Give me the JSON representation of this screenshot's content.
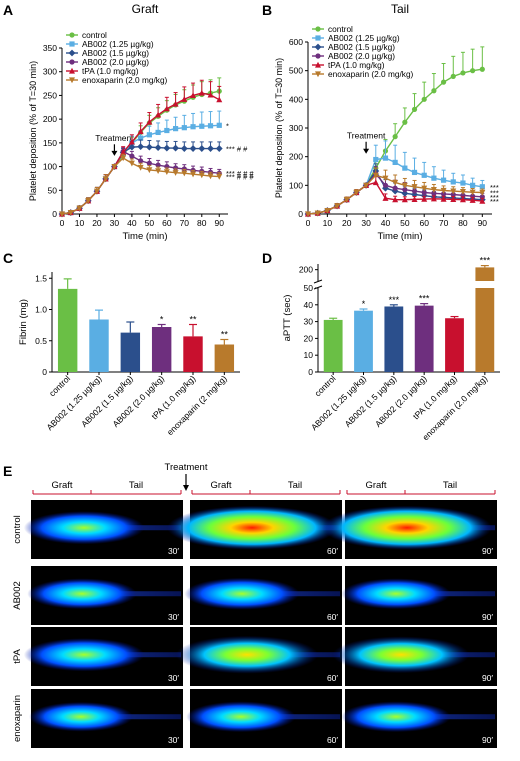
{
  "colors": {
    "control": "#6abf45",
    "ab125": "#5aaee3",
    "ab15": "#2b4f8c",
    "ab20": "#6e2f7e",
    "tpa": "#c8102e",
    "enox": "#b87a2c"
  },
  "panels": {
    "A": {
      "letter": "A"
    },
    "B": {
      "letter": "B"
    },
    "C": {
      "letter": "C"
    },
    "D": {
      "letter": "D"
    },
    "E": {
      "letter": "E"
    }
  },
  "chart_data": [
    {
      "id": "A",
      "type": "line",
      "title": "Graft",
      "xlabel": "Time (min)",
      "ylabel": "Platelet deposition (% of T=30 min)",
      "xlim": [
        0,
        95
      ],
      "ylim": [
        0,
        350
      ],
      "xticks": [
        "0",
        "10",
        "20",
        "30",
        "40",
        "50",
        "60",
        "70",
        "80",
        "90"
      ],
      "yticks": [
        "0",
        "50",
        "100",
        "150",
        "200",
        "250",
        "300",
        "350"
      ],
      "legend": "top-left",
      "annotation": "Treatment",
      "annotation_x": 30,
      "x": [
        0,
        5,
        10,
        15,
        20,
        25,
        30,
        35,
        40,
        45,
        50,
        55,
        60,
        65,
        70,
        75,
        80,
        85,
        90
      ],
      "series": [
        {
          "name": "control",
          "key": "control",
          "marker": "circle",
          "values": [
            0,
            3,
            12,
            28,
            48,
            74,
            100,
            124,
            150,
            172,
            192,
            206,
            219,
            230,
            238,
            246,
            252,
            255,
            259
          ],
          "err": [
            0,
            4,
            5,
            6,
            8,
            9,
            0,
            10,
            12,
            14,
            16,
            18,
            20,
            22,
            24,
            26,
            27,
            28,
            28
          ],
          "end_label": ""
        },
        {
          "name": "AB002 (1.25 µg/kg)",
          "key": "ab125",
          "marker": "square",
          "values": [
            0,
            3,
            12,
            28,
            48,
            74,
            100,
            128,
            150,
            160,
            167,
            172,
            176,
            180,
            182,
            184,
            185,
            186,
            187
          ],
          "err": [
            0,
            4,
            5,
            6,
            8,
            9,
            0,
            10,
            14,
            16,
            18,
            20,
            22,
            24,
            26,
            28,
            30,
            30,
            30
          ],
          "end_label": "*"
        },
        {
          "name": "AB002 (1.5 µg/kg)",
          "key": "ab15",
          "marker": "diamond",
          "values": [
            0,
            3,
            12,
            28,
            48,
            74,
            100,
            130,
            141,
            142,
            141,
            140,
            139,
            139,
            138,
            138,
            138,
            138,
            138
          ],
          "err": [
            0,
            4,
            5,
            6,
            8,
            9,
            0,
            8,
            12,
            14,
            14,
            14,
            14,
            14,
            14,
            14,
            14,
            14,
            14
          ],
          "end_label": "*** # #"
        },
        {
          "name": "AB002 (2.0 µg/kg)",
          "key": "ab20",
          "marker": "circle",
          "values": [
            0,
            3,
            12,
            28,
            48,
            74,
            100,
            132,
            122,
            112,
            107,
            103,
            100,
            97,
            95,
            92,
            90,
            88,
            86
          ],
          "err": [
            0,
            4,
            5,
            6,
            8,
            9,
            0,
            8,
            10,
            10,
            10,
            10,
            10,
            9,
            9,
            9,
            9,
            8,
            8
          ],
          "end_label": "*** # # #"
        },
        {
          "name": "tPA (1.0 mg/kg)",
          "key": "tpa",
          "marker": "triangle",
          "values": [
            0,
            3,
            12,
            28,
            48,
            74,
            100,
            130,
            152,
            174,
            194,
            209,
            222,
            232,
            242,
            250,
            255,
            251,
            241
          ],
          "err": [
            0,
            4,
            5,
            6,
            8,
            9,
            0,
            12,
            15,
            18,
            20,
            22,
            24,
            24,
            26,
            26,
            27,
            28,
            28
          ],
          "end_label": ""
        },
        {
          "name": "enoxaparin (2.0 mg/kg)",
          "key": "enox",
          "marker": "triangle-down",
          "values": [
            0,
            3,
            12,
            28,
            48,
            74,
            100,
            118,
            107,
            98,
            93,
            91,
            89,
            87,
            86,
            84,
            82,
            80,
            79
          ],
          "err": [
            0,
            4,
            5,
            6,
            8,
            9,
            0,
            8,
            9,
            9,
            9,
            8,
            8,
            8,
            8,
            8,
            8,
            8,
            8
          ],
          "end_label": "*** # # #"
        }
      ]
    },
    {
      "id": "B",
      "type": "line",
      "title": "Tail",
      "xlabel": "Time (min)",
      "ylabel": "Platelet deposition (% of T=30 min)",
      "xlim": [
        0,
        95
      ],
      "ylim": [
        0,
        600
      ],
      "xticks": [
        "0",
        "10",
        "20",
        "30",
        "40",
        "50",
        "60",
        "70",
        "80",
        "90"
      ],
      "yticks": [
        "0",
        "100",
        "200",
        "300",
        "400",
        "500",
        "600"
      ],
      "legend": "top-left",
      "annotation": "Treatment",
      "annotation_x": 30,
      "x": [
        0,
        5,
        10,
        15,
        20,
        25,
        30,
        35,
        40,
        45,
        50,
        55,
        60,
        65,
        70,
        75,
        80,
        85,
        90
      ],
      "series": [
        {
          "name": "control",
          "key": "control",
          "marker": "circle",
          "values": [
            0,
            3,
            12,
            28,
            50,
            75,
            100,
            160,
            220,
            270,
            320,
            365,
            400,
            430,
            460,
            480,
            492,
            500,
            505
          ],
          "err": [
            0,
            5,
            6,
            8,
            9,
            10,
            0,
            30,
            40,
            45,
            50,
            55,
            60,
            60,
            65,
            70,
            72,
            75,
            78
          ],
          "end_label": ""
        },
        {
          "name": "AB002 (1.25 µg/kg)",
          "key": "ab125",
          "marker": "square",
          "values": [
            0,
            3,
            12,
            28,
            50,
            75,
            100,
            190,
            195,
            180,
            160,
            145,
            135,
            125,
            118,
            112,
            108,
            100,
            95
          ],
          "err": [
            0,
            5,
            6,
            8,
            9,
            10,
            0,
            50,
            60,
            60,
            55,
            50,
            45,
            40,
            35,
            30,
            28,
            25,
            22
          ],
          "end_label": "***"
        },
        {
          "name": "AB002 (1.5 µg/kg)",
          "key": "ab15",
          "marker": "diamond",
          "values": [
            0,
            3,
            12,
            28,
            50,
            75,
            100,
            150,
            90,
            80,
            72,
            68,
            64,
            60,
            58,
            56,
            54,
            52,
            50
          ],
          "err": [
            0,
            5,
            6,
            8,
            9,
            10,
            0,
            25,
            30,
            28,
            25,
            22,
            20,
            18,
            16,
            15,
            14,
            13,
            12
          ],
          "end_label": ""
        },
        {
          "name": "AB002 (2.0 µg/kg)",
          "key": "ab20",
          "marker": "circle",
          "values": [
            0,
            3,
            12,
            28,
            50,
            75,
            100,
            140,
            100,
            90,
            85,
            80,
            75,
            72,
            70,
            68,
            65,
            62,
            60
          ],
          "err": [
            0,
            5,
            6,
            8,
            9,
            10,
            0,
            25,
            30,
            28,
            25,
            22,
            20,
            18,
            16,
            15,
            14,
            13,
            12
          ],
          "end_label": "***"
        },
        {
          "name": "tPA (1.0 mg/kg)",
          "key": "tpa",
          "marker": "triangle",
          "values": [
            0,
            3,
            12,
            28,
            50,
            75,
            100,
            110,
            55,
            50,
            50,
            51,
            52,
            53,
            52,
            51,
            50,
            48,
            45
          ],
          "err": [
            0,
            5,
            6,
            8,
            9,
            10,
            0,
            20,
            15,
            12,
            10,
            10,
            10,
            10,
            10,
            10,
            10,
            10,
            10
          ],
          "end_label": "***"
        },
        {
          "name": "enoxaparin (2.0 mg/kg)",
          "key": "enox",
          "marker": "triangle-down",
          "values": [
            0,
            3,
            12,
            28,
            50,
            75,
            100,
            135,
            125,
            110,
            100,
            95,
            90,
            85,
            82,
            80,
            78,
            76,
            75
          ],
          "err": [
            0,
            5,
            6,
            8,
            9,
            10,
            0,
            25,
            28,
            26,
            24,
            22,
            20,
            18,
            16,
            15,
            14,
            13,
            12
          ],
          "end_label": "***"
        }
      ]
    },
    {
      "id": "C",
      "type": "bar",
      "ylabel": "Fibrin (mg)",
      "ylim": [
        0,
        1.6
      ],
      "yticks": [
        "0",
        "0.5",
        "1.0",
        "1.5"
      ],
      "categories": [
        "control",
        "AB002 (1.25 µg/kg)",
        "AB002 (1.5 µg/kg)",
        "AB002 (2.0 µg/kg)",
        "tPA (1.0 mg/kg)",
        "enoxaparin (2 mg/kg)"
      ],
      "values": [
        1.33,
        0.84,
        0.63,
        0.72,
        0.57,
        0.44
      ],
      "err": [
        0.16,
        0.15,
        0.17,
        0.04,
        0.19,
        0.08
      ],
      "sig": [
        "",
        "",
        "",
        "*",
        "**",
        "**"
      ],
      "keys": [
        "control",
        "ab125",
        "ab15",
        "ab20",
        "tpa",
        "enox"
      ]
    },
    {
      "id": "D",
      "type": "bar",
      "ylabel": "aPTT (sec)",
      "ylim_lower": [
        0,
        50
      ],
      "ylim_upper": [
        150,
        225
      ],
      "yticks_lower": [
        "0",
        "10",
        "20",
        "30",
        "40",
        "50"
      ],
      "yticks_upper": [
        "200"
      ],
      "broken_axis": true,
      "categories": [
        "control",
        "AB002 (1.25 µg/kg)",
        "AB002 (1.5 µg/kg)",
        "AB002 (2.0 µg/kg)",
        "tPA (1.0 mg/kg)",
        "enoxaparin (2.0 mg/kg)"
      ],
      "values": [
        31,
        36.5,
        39,
        39.5,
        32,
        210
      ],
      "err": [
        1,
        1,
        1,
        1.2,
        1,
        8
      ],
      "sig": [
        "",
        "*",
        "***",
        "***",
        "",
        "***"
      ],
      "keys": [
        "control",
        "ab125",
        "ab15",
        "ab20",
        "tpa",
        "enox"
      ]
    }
  ],
  "imaging": {
    "treatment_label": "Treatment",
    "graft_label": "Graft",
    "tail_label": "Tail",
    "rows": [
      "control",
      "AB002",
      "tPA",
      "enoxaparin"
    ],
    "times": [
      "30′",
      "60′",
      "90′"
    ],
    "intensity": [
      [
        0.55,
        1.0,
        1.0
      ],
      [
        0.45,
        0.5,
        0.45
      ],
      [
        0.55,
        0.75,
        0.7
      ],
      [
        0.4,
        0.45,
        0.45
      ]
    ]
  }
}
